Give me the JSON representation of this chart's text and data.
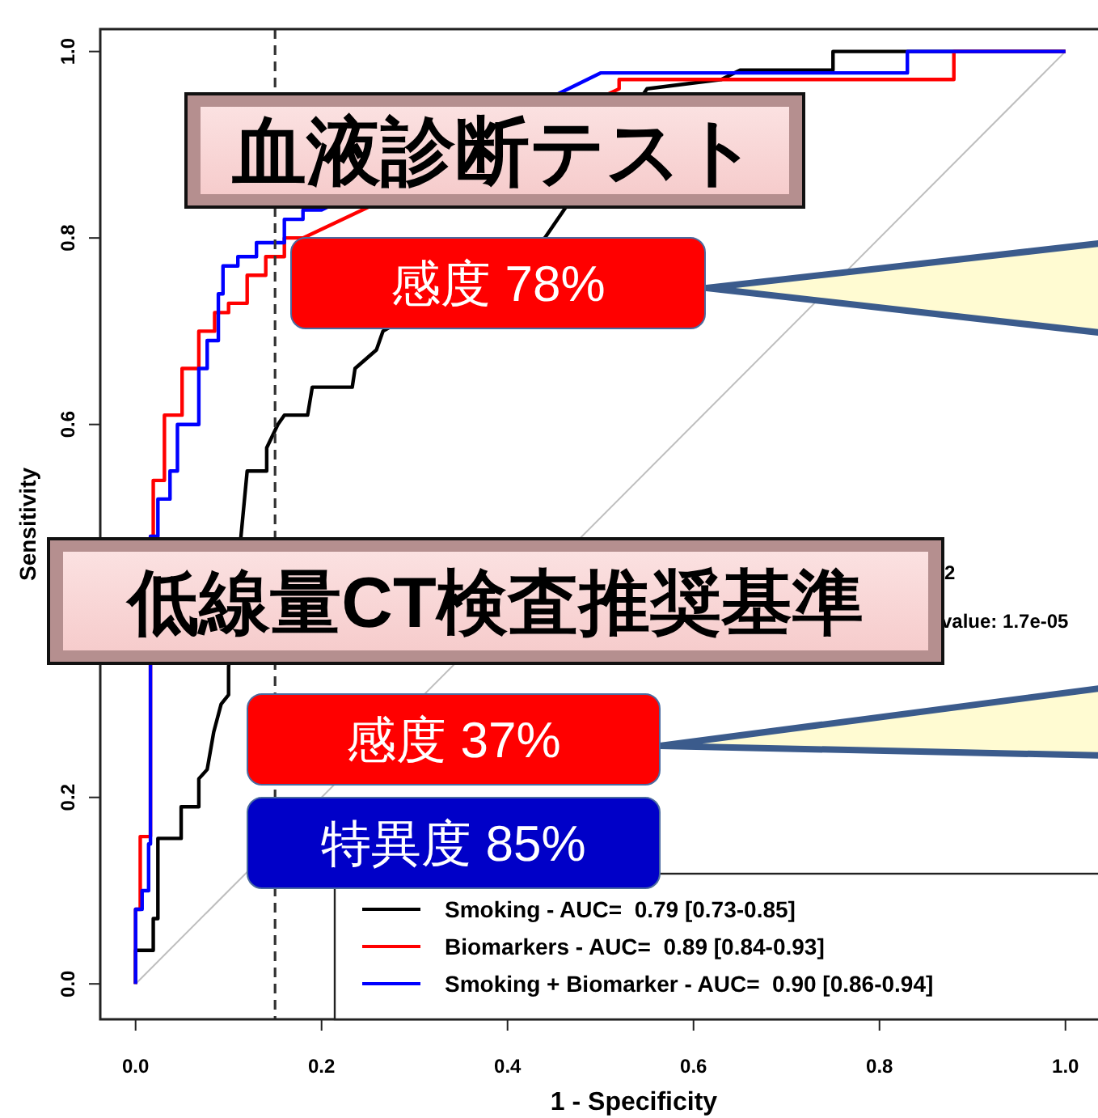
{
  "chart_data": {
    "type": "line",
    "xlabel": "1 - Specificity",
    "ylabel": "Sensitivity",
    "xlim": [
      -0.038,
      1.035
    ],
    "ylim": [
      -0.038,
      1.024
    ],
    "xticks": [
      {
        "value": 0,
        "label": "0.0"
      },
      {
        "value": 0.2,
        "label": "0.2"
      },
      {
        "value": 0.4,
        "label": "0.4"
      },
      {
        "value": 0.6,
        "label": "0.6"
      },
      {
        "value": 0.8,
        "label": "0.8"
      },
      {
        "value": 1,
        "label": "1.0"
      }
    ],
    "yticks": [
      {
        "value": 0,
        "label": "0.0"
      },
      {
        "value": 0.2,
        "label": "0.2"
      },
      {
        "value": 0.4,
        "label": null
      },
      {
        "value": 0.6,
        "label": "0.6"
      },
      {
        "value": 0.8,
        "label": "0.8"
      },
      {
        "value": 1,
        "label": "1.0"
      }
    ],
    "grid": false,
    "legend": "bottom right",
    "marker": "none",
    "line_style": "solid",
    "series": [
      {
        "color": "#bebebe",
        "x": [
          0,
          1
        ],
        "values": [
          0,
          1
        ]
      },
      {
        "name": "Smoking - AUC=  0.79 [0.73-0.85]",
        "color": "#000000",
        "x": [
          0,
          0,
          0.019,
          0.019,
          0.024,
          0.024,
          0.049,
          0.049,
          0.068,
          0.068,
          0.077,
          0.084,
          0.092,
          0.1,
          0.1,
          0.12,
          0.141,
          0.141,
          0.153,
          0.16,
          0.185,
          0.19,
          0.233,
          0.236,
          0.259,
          0.266,
          0.44,
          0.55,
          0.63,
          0.65,
          0.75,
          0.75,
          1
        ],
        "values": [
          0,
          0.036,
          0.036,
          0.07,
          0.07,
          0.156,
          0.156,
          0.19,
          0.19,
          0.22,
          0.23,
          0.27,
          0.3,
          0.31,
          0.34,
          0.55,
          0.55,
          0.575,
          0.6,
          0.61,
          0.61,
          0.64,
          0.64,
          0.66,
          0.68,
          0.7,
          0.8,
          0.96,
          0.97,
          0.98,
          0.98,
          1,
          1
        ]
      },
      {
        "name": "Biomarkers - AUC=  0.89 [0.84-0.93]",
        "color": "#ff0000",
        "x": [
          0,
          0,
          0.005,
          0.005,
          0.016,
          0.016,
          0.019,
          0.019,
          0.031,
          0.031,
          0.05,
          0.05,
          0.068,
          0.068,
          0.085,
          0.085,
          0.1,
          0.1,
          0.12,
          0.12,
          0.14,
          0.14,
          0.16,
          0.16,
          0.18,
          0.52,
          0.52,
          0.88,
          0.88,
          0.88,
          1
        ],
        "values": [
          0,
          0.08,
          0.08,
          0.158,
          0.158,
          0.48,
          0.48,
          0.54,
          0.54,
          0.61,
          0.61,
          0.66,
          0.66,
          0.7,
          0.7,
          0.72,
          0.72,
          0.73,
          0.73,
          0.76,
          0.76,
          0.78,
          0.78,
          0.8,
          0.8,
          0.96,
          0.97,
          0.97,
          0.99,
          1,
          1
        ]
      },
      {
        "name": "Smoking + Biomarker - AUC=  0.90 [0.86-0.94]",
        "color": "#0000ff",
        "x": [
          0,
          0,
          0.007,
          0.007,
          0.014,
          0.014,
          0.016,
          0.016,
          0.024,
          0.024,
          0.037,
          0.037,
          0.045,
          0.045,
          0.068,
          0.068,
          0.077,
          0.077,
          0.089,
          0.089,
          0.094,
          0.094,
          0.11,
          0.11,
          0.13,
          0.13,
          0.16,
          0.16,
          0.18,
          0.18,
          0.2,
          0.5,
          0.83,
          0.83,
          1
        ],
        "values": [
          0,
          0.08,
          0.08,
          0.1,
          0.1,
          0.15,
          0.15,
          0.48,
          0.48,
          0.52,
          0.52,
          0.55,
          0.55,
          0.6,
          0.6,
          0.66,
          0.66,
          0.69,
          0.69,
          0.74,
          0.74,
          0.77,
          0.77,
          0.78,
          0.78,
          0.795,
          0.795,
          0.82,
          0.82,
          0.83,
          0.83,
          0.977,
          0.977,
          1,
          1
        ]
      }
    ],
    "ref_lines": [
      {
        "axis": "x",
        "value": 0.15,
        "color": "#333333",
        "line_style": "dashed"
      }
    ],
    "annotations": [
      "2",
      "value: 1.7e-05",
      "血液診断テスト",
      "感度 78%",
      "低線量CT検査推奨基準",
      "感度 37%",
      "特異度 85%"
    ]
  }
}
